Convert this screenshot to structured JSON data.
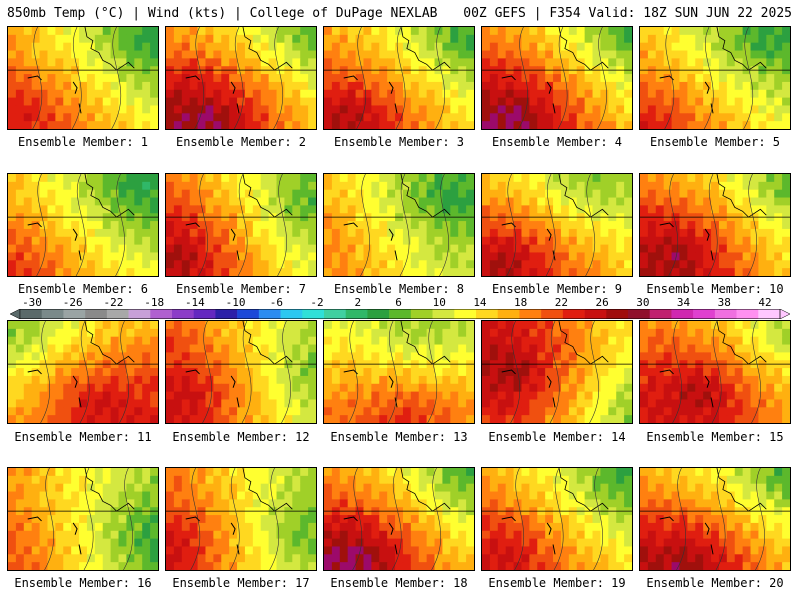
{
  "header": {
    "left": "850mb Temp (°C) | Wind (kts) | College of DuPage NEXLAB",
    "right": "00Z GEFS | F354 Valid: 18Z SUN JUN 22 2025"
  },
  "colorbar": {
    "labels": [
      "-30",
      "-26",
      "-22",
      "-18",
      "-14",
      "-10",
      "-6",
      "-2",
      "2",
      "6",
      "10",
      "14",
      "18",
      "22",
      "26",
      "30",
      "34",
      "38",
      "42"
    ],
    "colors": [
      "#5a6a6a",
      "#7a8a8a",
      "#9aa4a4",
      "#8a8a8a",
      "#a8a8a8",
      "#c8a0d8",
      "#b060d0",
      "#8c3cc8",
      "#6428c0",
      "#2c20a8",
      "#1c48d8",
      "#2c8cf0",
      "#2cc8f0",
      "#30e0d8",
      "#40d0a0",
      "#30b868",
      "#2ca040",
      "#5cb82c",
      "#a0d028",
      "#d4e840",
      "#ffff30",
      "#ffd820",
      "#ffb010",
      "#ff8010",
      "#f05010",
      "#e01e10",
      "#c81010",
      "#a00c0c",
      "#90102c",
      "#c02070",
      "#d028b0",
      "#e040d0",
      "#f070e0",
      "#ff90f0",
      "#ffc8ff"
    ]
  },
  "members": [
    {
      "label": "Ensemble Member: 1",
      "hot": [
        0.15,
        0.8
      ],
      "intensity": 0.55,
      "cool": [
        0.9,
        0.1
      ]
    },
    {
      "label": "Ensemble Member: 2",
      "hot": [
        0.25,
        0.85
      ],
      "intensity": 0.9,
      "cool": [
        0.95,
        0.05
      ]
    },
    {
      "label": "Ensemble Member: 3",
      "hot": [
        0.2,
        0.85
      ],
      "intensity": 0.75,
      "cool": [
        0.9,
        0.1
      ]
    },
    {
      "label": "Ensemble Member: 4",
      "hot": [
        0.2,
        0.85
      ],
      "intensity": 0.9,
      "cool": [
        0.95,
        0.05
      ]
    },
    {
      "label": "Ensemble Member: 5",
      "hot": [
        0.1,
        0.85
      ],
      "intensity": 0.55,
      "cool": [
        0.8,
        0.1
      ]
    },
    {
      "label": "Ensemble Member: 6",
      "hot": [
        0.1,
        0.8
      ],
      "intensity": 0.45,
      "cool": [
        0.85,
        0.1
      ]
    },
    {
      "label": "Ensemble Member: 7",
      "hot": [
        0.1,
        0.75
      ],
      "intensity": 0.8,
      "cool": [
        0.9,
        0.3
      ]
    },
    {
      "label": "Ensemble Member: 8",
      "hot": [
        0.1,
        0.6
      ],
      "intensity": 0.35,
      "cool": [
        0.8,
        0.2
      ]
    },
    {
      "label": "Ensemble Member: 9",
      "hot": [
        0.15,
        0.8
      ],
      "intensity": 0.9,
      "cool": [
        0.6,
        0.1
      ]
    },
    {
      "label": "Ensemble Member: 10",
      "hot": [
        0.25,
        0.75
      ],
      "intensity": 0.9,
      "cool": [
        0.9,
        0.15
      ]
    },
    {
      "label": "Ensemble Member: 11",
      "hot": [
        0.55,
        0.75
      ],
      "intensity": 0.8,
      "cool": [
        0.1,
        0.1
      ]
    },
    {
      "label": "Ensemble Member: 12",
      "hot": [
        0.15,
        0.7
      ],
      "intensity": 0.8,
      "cool": [
        0.9,
        0.5
      ]
    },
    {
      "label": "Ensemble Member: 13",
      "hot": [
        0.5,
        0.85
      ],
      "intensity": 0.7,
      "cool": [
        0.6,
        0.1
      ]
    },
    {
      "label": "Ensemble Member: 14",
      "hot": [
        0.2,
        0.5
      ],
      "intensity": 0.9,
      "cool": [
        0.95,
        0.8
      ]
    },
    {
      "label": "Ensemble Member: 15",
      "hot": [
        0.4,
        0.65
      ],
      "intensity": 0.9,
      "cool": [
        0.9,
        0.1
      ]
    },
    {
      "label": "Ensemble Member: 16",
      "hot": [
        0.1,
        0.9
      ],
      "intensity": 0.45,
      "cool": [
        0.95,
        0.7
      ]
    },
    {
      "label": "Ensemble Member: 17",
      "hot": [
        0.05,
        0.75
      ],
      "intensity": 0.8,
      "cool": [
        0.8,
        0.6
      ]
    },
    {
      "label": "Ensemble Member: 18",
      "hot": [
        0.2,
        0.85
      ],
      "intensity": 0.95,
      "cool": [
        0.9,
        0.1
      ]
    },
    {
      "label": "Ensemble Member: 19",
      "hot": [
        0.2,
        0.8
      ],
      "intensity": 0.65,
      "cool": [
        0.9,
        0.1
      ]
    },
    {
      "label": "Ensemble Member: 20",
      "hot": [
        0.3,
        0.9
      ],
      "intensity": 0.9,
      "cool": [
        0.9,
        0.1
      ]
    }
  ]
}
